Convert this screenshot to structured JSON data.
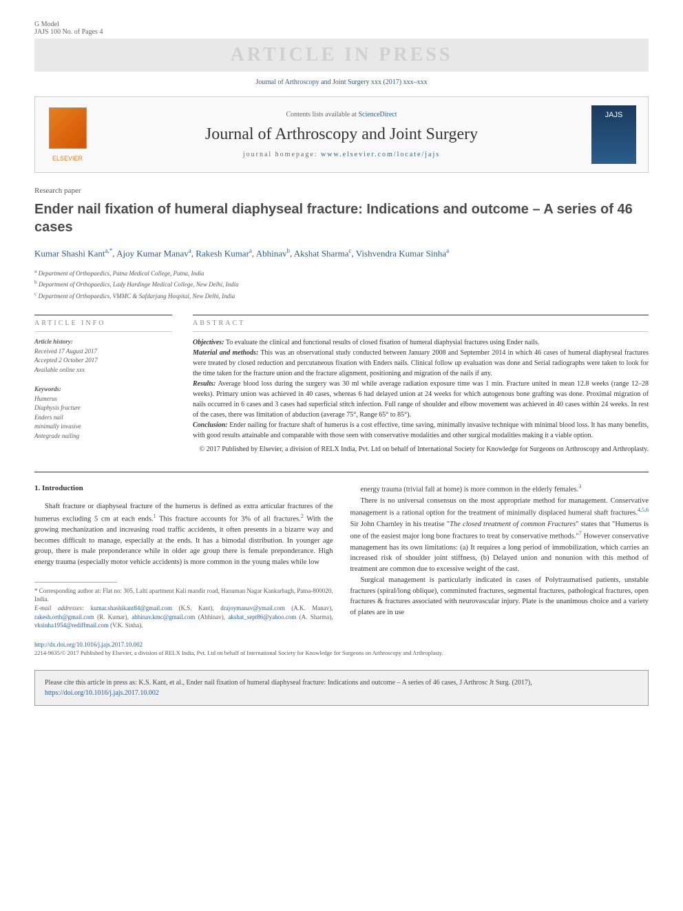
{
  "header": {
    "gmodel": "G Model",
    "jajs_ref": "JAJS 100 No. of Pages 4",
    "watermark": "ARTICLE IN PRESS",
    "journal_ref": "Journal of Arthroscopy and Joint Surgery xxx (2017) xxx–xxx",
    "contents_prefix": "Contents lists available at ",
    "contents_link": "ScienceDirect",
    "journal_name": "Journal of Arthroscopy and Joint Surgery",
    "homepage_prefix": "journal homepage: ",
    "homepage_link": "www.elsevier.com/locate/jajs",
    "elsevier": "ELSEVIER",
    "cover_text": "JAJS"
  },
  "article": {
    "type": "Research paper",
    "title": "Ender nail fixation of humeral diaphyseal fracture: Indications and outcome – A series of 46 cases",
    "authors_html": "Kumar Shashi Kant<sup>a,*</sup>, Ajoy Kumar Manav<sup>a</sup>, Rakesh Kumar<sup>a</sup>, Abhinav<sup>b</sup>, Akshat Sharma<sup>c</sup>, Vishvendra Kumar Sinha<sup>a</sup>",
    "affiliations": {
      "a": "Department of Orthopaedics, Patna Medical College, Patna, India",
      "b": "Department of Orthopaedics, Lady Hardinge Medical College, New Delhi, India",
      "c": "Department of Orthopaedics, VMMC & Safdarjang Hospital, New Delhi, India"
    }
  },
  "info": {
    "heading": "ARTICLE INFO",
    "history_label": "Article history:",
    "received": "Received 17 August 2017",
    "accepted": "Accepted 2 October 2017",
    "online": "Available online xxx",
    "keywords_label": "Keywords:",
    "keywords": [
      "Humerus",
      "Diaphysis fracture",
      "Enders nail",
      "minimally invasive",
      "Antegrade nailing"
    ]
  },
  "abstract": {
    "heading": "ABSTRACT",
    "objectives_label": "Objectives:",
    "objectives": " To evaluate the clinical and functional results of closed fixation of humeral diaphysial fractures using Ender nails.",
    "methods_label": "Material and methods:",
    "methods": " This was an observational study conducted between January 2008 and September 2014 in which 46 cases of humeral diaphyseal fractures were treated by closed reduction and percutaneous fixation with Enders nails. Clinical follow up evaluation was done and Serial radiographs were taken to look for the time taken for the fracture union and the fracture alignment, positioning and migration of the nails if any.",
    "results_label": "Results:",
    "results": " Average blood loss during the surgery was 30 ml while average radiation exposure time was 1 min. Fracture united in mean 12.8 weeks (range 12–28 weeks). Primary union was achieved in 40 cases, whereas 6 had delayed union at 24 weeks for which autogenous bone grafting was done. Proximal migration of nails occurred in 6 cases and 3 cases had superficial stitch infection. Full range of shoulder and elbow movement was achieved in 40 cases within 24 weeks. In rest of the cases, there was limitation of abduction (average 75°, Range 65° to 85°).",
    "conclusion_label": "Conclusion:",
    "conclusion": " Ender nailing for fracture shaft of humerus is a cost effective, time saving, minimally invasive technique with minimal blood loss. It has many benefits, with good results attainable and comparable with those seen with conservative modalities and other surgical modalities making it a viable option.",
    "copyright": "© 2017 Published by Elsevier, a division of RELX India, Pvt. Ltd on behalf of International Society for Knowledge for Surgeons on Arthroscopy and Arthroplasty."
  },
  "body": {
    "intro_heading": "1. Introduction",
    "col1_p1": "Shaft fracture or diaphyseal fracture of the humerus is defined as extra articular fractures of the humerus excluding 5 cm at each ends.<sup>1</sup> This fracture accounts for 3% of all fractures.<sup>2</sup> With the growing mechanization and increasing road traffic accidents, it often presents in a bizarre way and becomes difficult to manage, especially at the ends. It has a bimodal distribution. In younger age group, there is male preponderance while in older age group there is female preponderance. High energy trauma (especially motor vehicle accidents) is more common in the young males while low",
    "col2_p1": "energy trauma (trivial fall at home) is more common in the elderly females.<sup>3</sup>",
    "col2_p2": "There is no universal consensus on the most appropriate method for management. Conservative management is a rational option for the treatment of minimally displaced humeral shaft fractures.<sup>4,5,6</sup> Sir John Charnley in his treatise \"<span class=\"ital\">The closed treatment of common Fractures</span>\" states that \"Humerus is one of the easiest major long bone fractures to treat by conservative methods.\"<sup>7</sup> However conservative management has its own limitations: (a) It requires a long period of immobilization, which carries an increased risk of shoulder joint stiffness, (b) Delayed union and nonunion with this method of treatment are common due to excessive weight of the cast.",
    "col2_p3": "Surgical management is particularly indicated in cases of Polytraumatised patients, unstable fractures (spiral/long oblique), comminuted fractures, segmental fractures, pathological fractures, open fractures & fractures associated with neurovascular injury. Plate is the unanimous choice and a variety of plates are in use"
  },
  "footnotes": {
    "corresponding": "* Corresponding author at: Flat no: 305, Lalti apartment Kali mandir road, Hanuman Nagar Kankarbagh, Patna-800020, India.",
    "emails_label": "E-mail addresses:",
    "emails": [
      {
        "addr": "kumar.shashikant84@gmail.com",
        "who": "(K.S. Kant)"
      },
      {
        "addr": "drajoymanav@ymail.com",
        "who": "(A.K. Manav)"
      },
      {
        "addr": "rakesh.orth@gmail.com",
        "who": "(R. Kumar)"
      },
      {
        "addr": "abhinav.kmc@gmail.com",
        "who": "(Abhinav)"
      },
      {
        "addr": "akshat_sept86@yahoo.com",
        "who": "(A. Sharma)"
      },
      {
        "addr": "vksinha1954@rediffmail.com",
        "who": "(V.K. Sinha)"
      }
    ]
  },
  "footer": {
    "doi": "http://dx.doi.org/10.1016/j.jajs.2017.10.002",
    "issn_copyright": "2214-9635/© 2017 Published by Elsevier, a division of RELX India, Pvt. Ltd on behalf of International Society for Knowledge for Surgeons on Arthroscopy and Arthroplasty.",
    "cite_text": "Please cite this article in press as: K.S. Kant, et al., Ender nail fixation of humeral diaphyseal fracture: Indications and outcome – A series of 46 cases, J Arthrosc Jt Surg. (2017), ",
    "cite_link": "https://doi.org/10.1016/j.jajs.2017.10.002"
  },
  "colors": {
    "link": "#2b5d8c",
    "watermark_bg": "#e8e8e8",
    "watermark_fg": "#d0d0d0",
    "elsevier": "#e67e22"
  }
}
